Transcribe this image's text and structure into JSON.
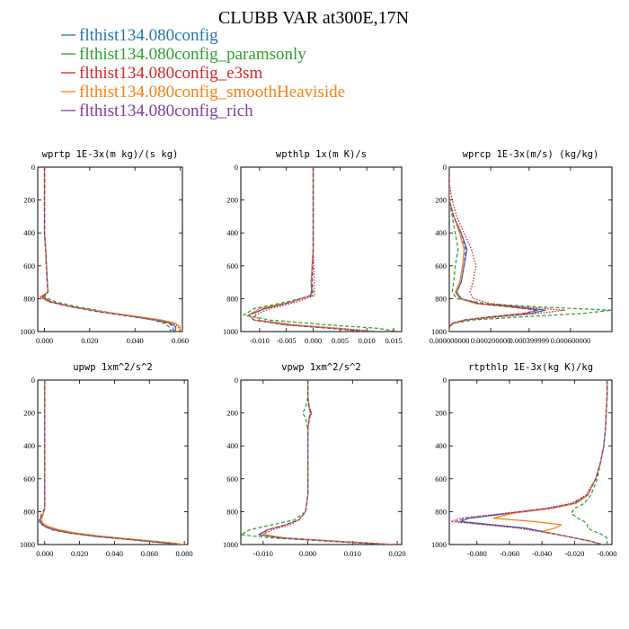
{
  "figure_title": "CLUBB VAR at300E,17N",
  "legend": [
    {
      "label": "flthist134.080config",
      "color": "#1f77b4",
      "dash": "solid"
    },
    {
      "label": "flthist134.080config_paramsonly",
      "color": "#2ca02c",
      "dash": "dashed"
    },
    {
      "label": "flthist134.080config_e3sm",
      "color": "#d62728",
      "dash": "dotted"
    },
    {
      "label": "flthist134.080config_smoothHeaviside",
      "color": "#ff7f0e",
      "dash": "solid"
    },
    {
      "label": "flthist134.080config_rich",
      "color": "#7a3fa0",
      "dash": "dashed"
    }
  ],
  "chart_data": [
    {
      "type": "line",
      "title": "wprtp  1E-3x(m kg)/(s kg)",
      "xlim": [
        -0.003,
        0.061
      ],
      "xticks": [
        0.0,
        0.02,
        0.04,
        0.06
      ],
      "xtick_labels": [
        "0.000",
        "0.020",
        "0.040",
        "0.060"
      ],
      "ylim": [
        1000,
        0
      ],
      "yticks": [
        0,
        200,
        400,
        600,
        800,
        1000
      ],
      "y": [
        0,
        100,
        200,
        300,
        400,
        500,
        600,
        700,
        760,
        790,
        820,
        850,
        880,
        910,
        930,
        950,
        970,
        990,
        1000
      ],
      "series": [
        {
          "name": "flthist134.080config",
          "values": [
            0.0,
            0.0,
            0.0,
            0.0,
            0.0,
            0.0005,
            0.0008,
            0.0012,
            0.0015,
            -0.001,
            0.003,
            0.012,
            0.025,
            0.04,
            0.05,
            0.056,
            0.058,
            0.058,
            0.057
          ]
        },
        {
          "name": "flthist134.080config_paramsonly",
          "values": [
            0.0,
            0.0,
            0.0,
            0.0,
            0.0,
            0.0005,
            0.0008,
            0.0012,
            0.0015,
            0.0,
            0.005,
            0.015,
            0.027,
            0.04,
            0.048,
            0.053,
            0.055,
            0.056,
            0.055
          ]
        },
        {
          "name": "flthist134.080config_e3sm",
          "values": [
            0.0,
            0.0,
            0.0,
            0.0,
            0.0,
            0.0005,
            0.0009,
            0.0013,
            0.0016,
            -0.001,
            0.003,
            0.013,
            0.026,
            0.041,
            0.051,
            0.057,
            0.059,
            0.06,
            0.059
          ]
        },
        {
          "name": "flthist134.080config_smoothHeaviside",
          "values": [
            0.0,
            0.0,
            0.0,
            0.0,
            0.0,
            0.0005,
            0.0008,
            0.0012,
            0.0015,
            -0.002,
            0.002,
            0.012,
            0.026,
            0.042,
            0.052,
            0.058,
            0.06,
            0.06,
            0.059
          ]
        },
        {
          "name": "flthist134.080config_rich",
          "values": [
            0.0,
            0.0,
            0.0,
            0.0,
            0.0,
            0.0005,
            0.0008,
            0.0012,
            0.0015,
            -0.001,
            0.003,
            0.012,
            0.024,
            0.039,
            0.049,
            0.055,
            0.057,
            0.057,
            0.056
          ]
        }
      ]
    },
    {
      "type": "line",
      "title": "wpthlp  1x(m K)/s",
      "xlim": [
        -0.0135,
        0.0165
      ],
      "xticks": [
        -0.01,
        -0.005,
        0.0,
        0.005,
        0.01,
        0.015
      ],
      "xtick_labels": [
        "-0.010",
        "-0.005",
        "0.000",
        "0.005",
        "0.010",
        "0.015"
      ],
      "ylim": [
        1000,
        0
      ],
      "yticks": [
        0,
        200,
        400,
        600,
        800,
        1000
      ],
      "y": [
        0,
        100,
        200,
        300,
        400,
        500,
        600,
        700,
        750,
        780,
        820,
        860,
        900,
        930,
        960,
        980,
        1000
      ],
      "series": [
        {
          "name": "flthist134.080config",
          "values": [
            0.0,
            0.0,
            0.0,
            0.0,
            0.0,
            0.0,
            -0.0002,
            -0.0004,
            -0.0003,
            -0.0005,
            -0.004,
            -0.009,
            -0.012,
            -0.011,
            -0.005,
            0.004,
            0.011
          ]
        },
        {
          "name": "flthist134.080config_paramsonly",
          "values": [
            0.0,
            0.0,
            0.0,
            0.0,
            0.0,
            0.0,
            -0.0001,
            -0.0002,
            -0.0001,
            0.0,
            -0.005,
            -0.011,
            -0.013,
            -0.008,
            0.003,
            0.012,
            0.016
          ]
        },
        {
          "name": "flthist134.080config_e3sm",
          "values": [
            0.0,
            0.0,
            0.0,
            0.0,
            0.0,
            0.0,
            0.0001,
            0.0002,
            0.0002,
            0.0003,
            -0.003,
            -0.008,
            -0.011,
            -0.01,
            -0.003,
            0.005,
            0.012
          ]
        },
        {
          "name": "flthist134.080config_smoothHeaviside",
          "values": [
            0.0,
            0.0,
            0.0,
            0.0,
            0.0,
            0.0,
            -0.0002,
            -0.0003,
            -0.0002,
            -0.0004,
            -0.004,
            -0.01,
            -0.012,
            -0.011,
            -0.004,
            0.004,
            0.01
          ]
        },
        {
          "name": "flthist134.080config_rich",
          "values": [
            0.0,
            0.0,
            0.0,
            0.0,
            0.0,
            0.0,
            -0.0001,
            -0.0002,
            -0.0002,
            -0.0004,
            -0.004,
            -0.009,
            -0.012,
            -0.011,
            -0.005,
            0.003,
            0.01
          ]
        }
      ]
    },
    {
      "type": "line",
      "title": "wprcp  1E-3x(m/s) (kg/kg)",
      "xlim": [
        0.0,
        0.0011
      ],
      "xticks": [
        0.0,
        0.0002,
        0.0004,
        0.0006
      ],
      "xtick_labels": [
        "0.000000000",
        "0.000200000",
        "0.000399999",
        "0.000600000"
      ],
      "xtick_positions": [
        0.0,
        0.00028,
        0.00054,
        0.00082
      ],
      "ylim": [
        1000,
        0
      ],
      "yticks": [
        0,
        200,
        400,
        600,
        800,
        1000
      ],
      "y": [
        0,
        100,
        200,
        300,
        400,
        500,
        600,
        700,
        760,
        800,
        830,
        850,
        870,
        890,
        910,
        930,
        950,
        970,
        1000
      ],
      "series": [
        {
          "name": "flthist134.080config",
          "values": [
            0.0,
            0.0,
            0.0,
            3e-05,
            8e-05,
            0.00012,
            0.0001,
            8e-05,
            5e-05,
            8e-05,
            0.0002,
            0.00045,
            0.00065,
            0.00055,
            0.0003,
            0.0001,
            2e-05,
            0.0,
            0.0
          ]
        },
        {
          "name": "flthist134.080config_paramsonly",
          "values": [
            0.0,
            0.0,
            0.0,
            2e-05,
            4e-05,
            6e-05,
            4e-05,
            3e-05,
            2e-05,
            5e-05,
            0.00025,
            0.0006,
            0.0011,
            0.0009,
            0.0005,
            0.00015,
            3e-05,
            0.0,
            0.0
          ]
        },
        {
          "name": "flthist134.080config_e3sm",
          "values": [
            0.0,
            0.0,
            2e-05,
            5e-05,
            0.0001,
            0.00015,
            0.00018,
            0.00016,
            0.00014,
            0.00016,
            0.00028,
            0.0005,
            0.00078,
            0.0006,
            0.00035,
            0.00012,
            3e-05,
            0.0,
            0.0
          ]
        },
        {
          "name": "flthist134.080config_smoothHeaviside",
          "values": [
            0.0,
            0.0,
            0.0,
            3e-05,
            7e-05,
            0.0001,
            9e-05,
            7e-05,
            4e-05,
            7e-05,
            0.00018,
            0.0004,
            0.0006,
            0.0005,
            0.00028,
            0.0001,
            2e-05,
            0.0,
            0.0
          ]
        },
        {
          "name": "flthist134.080config_rich",
          "values": [
            0.0,
            0.0,
            0.0,
            3e-05,
            8e-05,
            0.00011,
            0.0001,
            8e-05,
            5e-05,
            8e-05,
            0.0002,
            0.00042,
            0.0006,
            0.0005,
            0.00028,
            0.0001,
            2e-05,
            0.0,
            0.0
          ]
        }
      ]
    },
    {
      "type": "line",
      "title": "upwp  1xm^2/s^2",
      "xlim": [
        -0.004,
        0.082
      ],
      "xticks": [
        0.0,
        0.02,
        0.04,
        0.06,
        0.08
      ],
      "xtick_labels": [
        "0.000",
        "0.020",
        "0.040",
        "0.060",
        "0.080"
      ],
      "ylim": [
        1000,
        0
      ],
      "yticks": [
        0,
        200,
        400,
        600,
        800,
        1000
      ],
      "y": [
        0,
        100,
        200,
        300,
        400,
        500,
        600,
        700,
        780,
        820,
        850,
        870,
        890,
        910,
        930,
        950,
        970,
        990,
        1000
      ],
      "series": [
        {
          "name": "flthist134.080config",
          "values": [
            0.0,
            0.0,
            0.0,
            0.0,
            0.0,
            0.0,
            0.0,
            0.0,
            0.0,
            -0.001,
            -0.003,
            -0.002,
            0.0,
            0.005,
            0.015,
            0.03,
            0.05,
            0.07,
            0.078
          ]
        },
        {
          "name": "flthist134.080config_paramsonly",
          "values": [
            0.0,
            0.0,
            0.0,
            0.0,
            0.0,
            0.0,
            0.0,
            0.0,
            0.0,
            -0.001,
            -0.002,
            -0.002,
            0.0,
            0.005,
            0.014,
            0.028,
            0.048,
            0.068,
            0.076
          ]
        },
        {
          "name": "flthist134.080config_e3sm",
          "values": [
            0.0,
            0.0,
            0.0,
            0.0,
            0.0,
            0.0,
            0.0,
            0.0,
            0.0,
            -0.001,
            -0.003,
            -0.002,
            0.001,
            0.006,
            0.016,
            0.031,
            0.051,
            0.071,
            0.079
          ]
        },
        {
          "name": "flthist134.080config_smoothHeaviside",
          "values": [
            0.0,
            0.0,
            0.0,
            0.0,
            0.0,
            0.0,
            0.0,
            0.0,
            0.0,
            -0.001,
            -0.002,
            -0.001,
            0.002,
            0.008,
            0.018,
            0.033,
            0.053,
            0.073,
            0.08
          ]
        },
        {
          "name": "flthist134.080config_rich",
          "values": [
            0.0,
            0.0,
            0.0,
            0.0,
            0.0,
            0.0,
            0.0,
            0.0,
            0.0,
            -0.002,
            -0.003,
            -0.003,
            0.0,
            0.004,
            0.014,
            0.029,
            0.049,
            0.069,
            0.077
          ]
        }
      ]
    },
    {
      "type": "line",
      "title": "vpwp  1xm^2/s^2",
      "xlim": [
        -0.015,
        0.021
      ],
      "xticks": [
        -0.01,
        0.0,
        0.01,
        0.02
      ],
      "xtick_labels": [
        "-0.010",
        "0.000",
        "0.010",
        "0.020"
      ],
      "ylim": [
        1000,
        0
      ],
      "yticks": [
        0,
        200,
        400,
        600,
        800,
        1000
      ],
      "y": [
        0,
        100,
        170,
        200,
        230,
        300,
        400,
        500,
        600,
        700,
        800,
        850,
        880,
        910,
        940,
        960,
        980,
        1000
      ],
      "series": [
        {
          "name": "flthist134.080config",
          "values": [
            0.0,
            0.0,
            0.0003,
            0.0007,
            0.0003,
            0.0,
            0.0,
            0.0,
            0.0,
            0.0,
            -0.0005,
            -0.002,
            -0.005,
            -0.009,
            -0.011,
            -0.006,
            0.006,
            0.019
          ]
        },
        {
          "name": "flthist134.080config_paramsonly",
          "values": [
            0.0,
            0.0,
            -0.0005,
            -0.0012,
            -0.0005,
            0.0,
            0.0,
            0.0,
            0.0,
            0.0,
            -0.0005,
            -0.003,
            -0.008,
            -0.013,
            -0.015,
            -0.008,
            0.005,
            0.018
          ]
        },
        {
          "name": "flthist134.080config_e3sm",
          "values": [
            0.0,
            0.0,
            0.0004,
            0.0009,
            0.0004,
            0.0,
            0.0,
            0.0,
            0.0,
            0.0,
            -0.0005,
            -0.002,
            -0.004,
            -0.008,
            -0.01,
            -0.005,
            0.007,
            0.02
          ]
        },
        {
          "name": "flthist134.080config_smoothHeaviside",
          "values": [
            0.0,
            0.0,
            0.0003,
            0.0006,
            0.0003,
            0.0,
            0.0,
            0.0,
            0.0,
            0.0,
            -0.0005,
            -0.002,
            -0.005,
            -0.009,
            -0.01,
            -0.005,
            0.006,
            0.019
          ]
        },
        {
          "name": "flthist134.080config_rich",
          "values": [
            0.0,
            0.0,
            0.0003,
            0.0006,
            0.0003,
            0.0,
            0.0,
            0.0,
            0.0,
            0.0,
            -0.0005,
            -0.002,
            -0.005,
            -0.009,
            -0.011,
            -0.006,
            0.005,
            0.018
          ]
        }
      ]
    },
    {
      "type": "line",
      "title": "rtpthlp  1E-3x(kg K)/kg",
      "xlim": [
        -0.097,
        0.003
      ],
      "xticks": [
        -0.08,
        -0.06,
        -0.04,
        -0.02,
        0.0
      ],
      "xtick_labels": [
        "-0.080",
        "-0.060",
        "-0.040",
        "-0.020",
        "-0.000"
      ],
      "ylim": [
        1000,
        0
      ],
      "yticks": [
        0,
        200,
        400,
        600,
        800,
        1000
      ],
      "y": [
        0,
        100,
        200,
        300,
        400,
        500,
        600,
        700,
        750,
        780,
        810,
        840,
        860,
        880,
        900,
        920,
        940,
        960,
        980,
        1000
      ],
      "series": [
        {
          "name": "flthist134.080config",
          "values": [
            0.0,
            0.0,
            -0.0005,
            -0.001,
            -0.002,
            -0.004,
            -0.007,
            -0.012,
            -0.02,
            -0.035,
            -0.06,
            -0.085,
            -0.09,
            -0.07,
            -0.05,
            -0.04,
            -0.03,
            -0.02,
            -0.01,
            -0.003
          ]
        },
        {
          "name": "flthist134.080config_paramsonly",
          "values": [
            0.0,
            0.0,
            -0.0005,
            -0.001,
            -0.002,
            -0.004,
            -0.006,
            -0.01,
            -0.014,
            -0.02,
            -0.022,
            -0.018,
            -0.014,
            -0.012,
            -0.012,
            -0.008,
            -0.003,
            0.0,
            0.0,
            0.0
          ]
        },
        {
          "name": "flthist134.080config_e3sm",
          "values": [
            0.0,
            0.0,
            -0.0005,
            -0.001,
            -0.002,
            -0.004,
            -0.007,
            -0.013,
            -0.022,
            -0.038,
            -0.063,
            -0.09,
            -0.096,
            -0.075,
            -0.055,
            -0.042,
            -0.03,
            -0.02,
            -0.01,
            -0.003
          ]
        },
        {
          "name": "flthist134.080config_smoothHeaviside",
          "values": [
            0.0,
            0.0,
            -0.0005,
            -0.001,
            -0.002,
            -0.004,
            -0.007,
            -0.012,
            -0.019,
            -0.034,
            -0.058,
            -0.07,
            -0.045,
            -0.028,
            -0.032,
            -0.04,
            -0.03,
            -0.02,
            -0.01,
            -0.003
          ]
        },
        {
          "name": "flthist134.080config_rich",
          "values": [
            0.0,
            0.0,
            -0.0005,
            -0.001,
            -0.002,
            -0.004,
            -0.007,
            -0.012,
            -0.021,
            -0.036,
            -0.061,
            -0.087,
            -0.093,
            -0.072,
            -0.052,
            -0.041,
            -0.03,
            -0.02,
            -0.01,
            -0.003
          ]
        }
      ]
    }
  ]
}
